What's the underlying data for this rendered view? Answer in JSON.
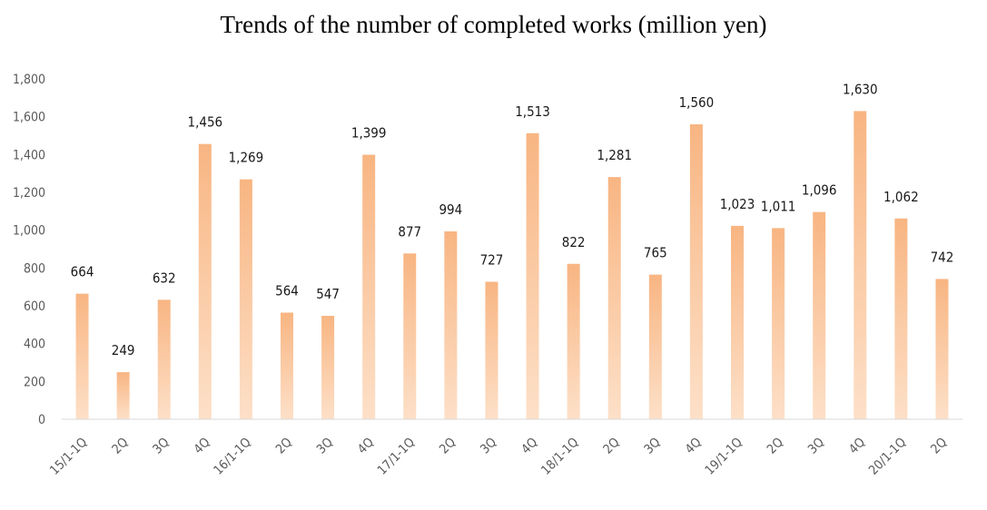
{
  "chart_data": {
    "type": "bar",
    "title": "Trends of the number of completed works (million yen)",
    "categories": [
      "15/1-1Q",
      "2Q",
      "3Q",
      "4Q",
      "16/1-1Q",
      "2Q",
      "3Q",
      "4Q",
      "17/1-1Q",
      "2Q",
      "3Q",
      "4Q",
      "18/1-1Q",
      "2Q",
      "3Q",
      "4Q",
      "19/1-1Q",
      "2Q",
      "3Q",
      "4Q",
      "20/1-1Q",
      "2Q"
    ],
    "values": [
      664,
      249,
      632,
      1456,
      1269,
      564,
      547,
      1399,
      877,
      994,
      727,
      1513,
      822,
      1281,
      765,
      1560,
      1023,
      1011,
      1096,
      1630,
      1062,
      742
    ],
    "value_labels": [
      "664",
      "249",
      "632",
      "1,456",
      "1,269",
      "564",
      "547",
      "1,399",
      "877",
      "994",
      "727",
      "1,513",
      "822",
      "1,281",
      "765",
      "1,560",
      "1,023",
      "1,011",
      "1,096",
      "1,630",
      "1,062",
      "742"
    ],
    "xlabel": "",
    "ylabel": "",
    "ylim": [
      0,
      1800
    ],
    "yticks": [
      0,
      200,
      400,
      600,
      800,
      1000,
      1200,
      1400,
      1600,
      1800
    ],
    "ytick_labels": [
      "0",
      "200",
      "400",
      "600",
      "800",
      "1,000",
      "1,200",
      "1,400",
      "1,600",
      "1,800"
    ],
    "grid": false,
    "legend": "none",
    "colors": {
      "bar_top": "#f8b582",
      "bar_bottom": "#fde0c8",
      "axis": "#d9d9d9"
    }
  }
}
